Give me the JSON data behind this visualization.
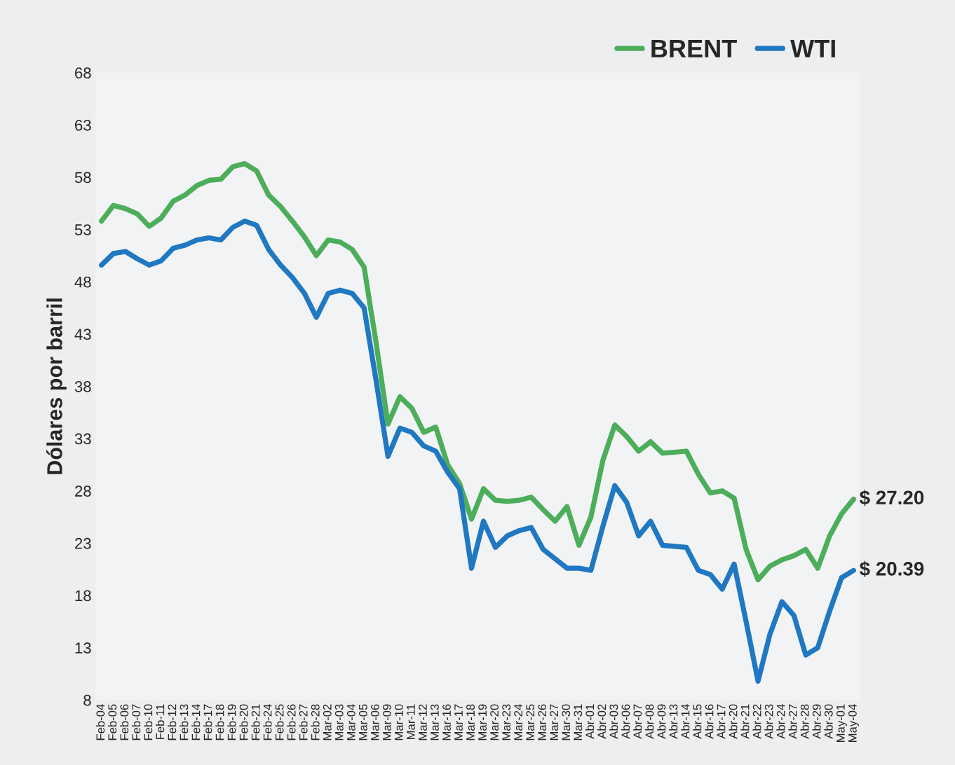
{
  "chart_data": {
    "type": "line",
    "ylabel": "Dólares por barril",
    "categories": [
      "Feb-04",
      "Feb-05",
      "Feb-06",
      "Feb-07",
      "Feb-10",
      "Feb-11",
      "Feb-12",
      "Feb-13",
      "Feb-14",
      "Feb-17",
      "Feb-18",
      "Feb-19",
      "Feb-20",
      "Feb-21",
      "Feb-24",
      "Feb-25",
      "Feb-26",
      "Feb-27",
      "Feb-28",
      "Mar-02",
      "Mar-03",
      "Mar-04",
      "Mar-05",
      "Mar-06",
      "Mar-09",
      "Mar-10",
      "Mar-11",
      "Mar-12",
      "Mar-13",
      "Mar-16",
      "Mar-17",
      "Mar-18",
      "Mar-19",
      "Mar-20",
      "Mar-23",
      "Mar-24",
      "Mar-25",
      "Mar-26",
      "Mar-27",
      "Mar-30",
      "Mar-31",
      "Abr-01",
      "Abr-02",
      "Abr-03",
      "Abr-06",
      "Abr-07",
      "Abr-08",
      "Abr-09",
      "Abr-13",
      "Abr-14",
      "Abr-15",
      "Abr-16",
      "Abr-17",
      "Abr-20",
      "Abr-21",
      "Abr-22",
      "Abr-23",
      "Abr-24",
      "Abr-27",
      "Abr-28",
      "Abr-29",
      "Abr-30",
      "May-01",
      "May-04"
    ],
    "series": [
      {
        "name": "BRENT",
        "color": "#4cad5a",
        "values": [
          53.8,
          55.3,
          55.0,
          54.5,
          53.3,
          54.1,
          55.7,
          56.3,
          57.2,
          57.7,
          57.8,
          59.0,
          59.3,
          58.6,
          56.3,
          55.2,
          53.8,
          52.3,
          50.5,
          52.0,
          51.8,
          51.1,
          49.4,
          42.2,
          34.4,
          37.0,
          35.9,
          33.6,
          34.1,
          30.5,
          28.7,
          25.3,
          28.2,
          27.1,
          27.0,
          27.1,
          27.4,
          26.2,
          25.1,
          26.5,
          22.8,
          25.5,
          30.9,
          34.3,
          33.2,
          31.8,
          32.7,
          31.6,
          31.7,
          31.8,
          29.6,
          27.8,
          28.0,
          27.3,
          22.4,
          19.5,
          20.8,
          21.4,
          21.8,
          22.4,
          20.6,
          23.7,
          25.8,
          27.2
        ]
      },
      {
        "name": "WTI",
        "color": "#1f78c1",
        "values": [
          49.6,
          50.7,
          50.9,
          50.2,
          49.6,
          50.0,
          51.2,
          51.5,
          52.0,
          52.2,
          52.0,
          53.2,
          53.8,
          53.4,
          51.1,
          49.6,
          48.4,
          46.9,
          44.6,
          46.9,
          47.2,
          46.9,
          45.5,
          38.6,
          31.3,
          34.0,
          33.6,
          32.3,
          31.8,
          29.8,
          28.2,
          20.6,
          25.1,
          22.6,
          23.7,
          24.2,
          24.5,
          22.4,
          21.5,
          20.6,
          20.6,
          20.4,
          24.6,
          28.5,
          26.9,
          23.7,
          25.1,
          22.8,
          22.7,
          22.6,
          20.4,
          20.0,
          18.6,
          21.0,
          15.5,
          9.8,
          14.3,
          17.4,
          16.1,
          12.3,
          13.0,
          16.5,
          19.7,
          20.39
        ]
      }
    ],
    "ylim": [
      8,
      68
    ],
    "yticks": [
      8,
      13,
      18,
      23,
      28,
      33,
      38,
      43,
      48,
      53,
      58,
      63,
      68
    ],
    "annotations": [
      {
        "text": "$ 27.20",
        "x": "May-04",
        "y": 27.2
      },
      {
        "text": "$ 20.39",
        "x": "May-04",
        "y": 20.39
      }
    ],
    "legend": "top right",
    "grid": false,
    "marker": "none",
    "line_style": "solid"
  }
}
